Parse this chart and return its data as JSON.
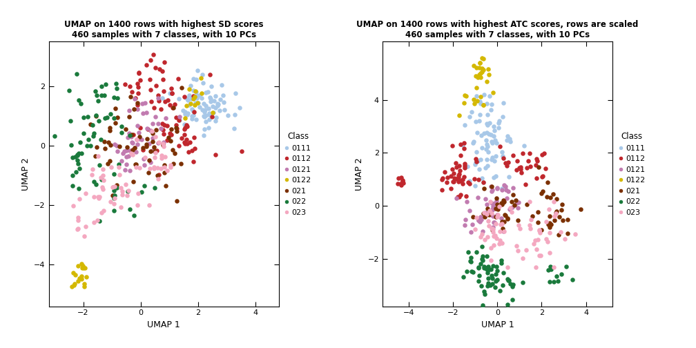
{
  "title1": "UMAP on 1400 rows with highest SD scores\n460 samples with 7 classes, with 10 PCs",
  "title2": "UMAP on 1400 rows with highest ATC scores, rows are scaled\n460 samples with 7 classes, with 10 PCs",
  "xlabel": "UMAP 1",
  "ylabel": "UMAP 2",
  "classes": [
    "0111",
    "0112",
    "0121",
    "0122",
    "021",
    "022",
    "023"
  ],
  "colors": {
    "0111": "#A8C8E8",
    "0112": "#C0272D",
    "0121": "#C17BB0",
    "0122": "#D4B800",
    "021": "#7B3000",
    "022": "#1A7A3C",
    "023": "#F4A8C0"
  },
  "legend_title": "Class",
  "bg_color": "#FFFFFF",
  "plot1_xlim": [
    -3.2,
    4.8
  ],
  "plot1_ylim": [
    -5.4,
    3.5
  ],
  "plot1_xticks": [
    -2,
    0,
    2,
    4
  ],
  "plot1_yticks": [
    -4,
    -2,
    0,
    2
  ],
  "plot2_xlim": [
    -5.2,
    5.2
  ],
  "plot2_ylim": [
    -3.8,
    6.2
  ],
  "plot2_xticks": [
    -4,
    -2,
    0,
    2,
    4
  ],
  "plot2_yticks": [
    -2,
    0,
    2,
    4
  ]
}
